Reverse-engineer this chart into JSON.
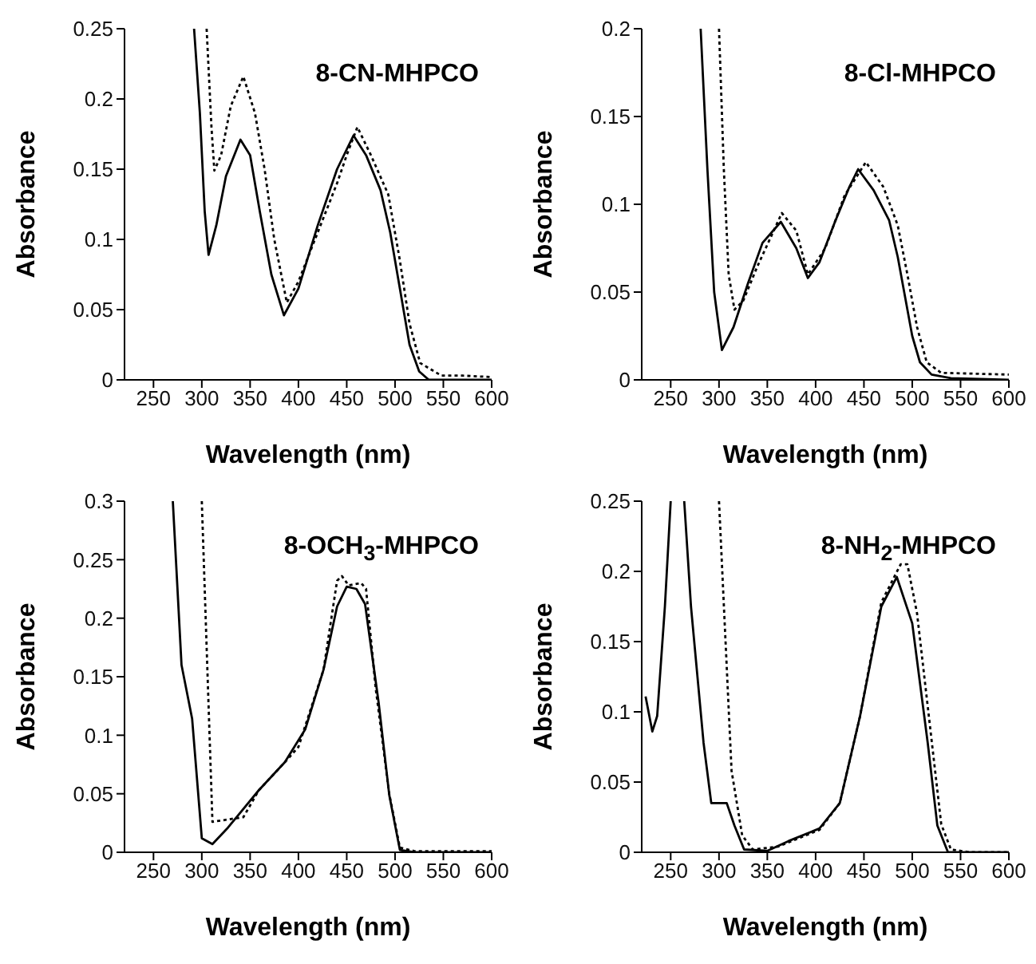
{
  "chart_data": [
    {
      "type": "line",
      "xlabel": "Wavelength (nm)",
      "ylabel": "Absorbance",
      "annotations": [
        "8-CN-MHPCO"
      ],
      "xlim": [
        220,
        600
      ],
      "xticks": [
        250,
        300,
        350,
        400,
        450,
        500,
        550,
        600
      ],
      "ylim": [
        0,
        0.25
      ],
      "yticks": [
        0,
        0.05,
        0.1,
        0.15,
        0.2,
        0.25
      ],
      "series": [
        {
          "color": "#000000",
          "line_style": "solid",
          "x": [
            292,
            298,
            303,
            307,
            315,
            325,
            340,
            350,
            360,
            372,
            385,
            400,
            420,
            440,
            457,
            470,
            485,
            495,
            505,
            515,
            525,
            535,
            600
          ],
          "values": [
            0.25,
            0.19,
            0.12,
            0.089,
            0.11,
            0.145,
            0.171,
            0.16,
            0.12,
            0.075,
            0.046,
            0.065,
            0.11,
            0.15,
            0.174,
            0.16,
            0.135,
            0.105,
            0.065,
            0.025,
            0.006,
            0,
            0
          ]
        },
        {
          "color": "#000000",
          "line_style": "dotted",
          "x": [
            305,
            310,
            313,
            320,
            330,
            343,
            355,
            365,
            375,
            388,
            400,
            420,
            440,
            450,
            461,
            475,
            493,
            505,
            515,
            526,
            548,
            570,
            600
          ],
          "values": [
            0.25,
            0.18,
            0.149,
            0.16,
            0.195,
            0.216,
            0.19,
            0.15,
            0.1,
            0.055,
            0.07,
            0.105,
            0.14,
            0.16,
            0.18,
            0.16,
            0.132,
            0.085,
            0.04,
            0.012,
            0.003,
            0.003,
            0.002
          ]
        }
      ]
    },
    {
      "type": "line",
      "xlabel": "Wavelength (nm)",
      "ylabel": "Absorbance",
      "annotations": [
        "8-Cl-MHPCO"
      ],
      "xlim": [
        220,
        600
      ],
      "xticks": [
        250,
        300,
        350,
        400,
        450,
        500,
        550,
        600
      ],
      "ylim": [
        0,
        0.2
      ],
      "yticks": [
        0,
        0.05,
        0.1,
        0.15,
        0.2
      ],
      "series": [
        {
          "color": "#000000",
          "line_style": "solid",
          "x": [
            281,
            288,
            295,
            303,
            315,
            330,
            345,
            364,
            380,
            392,
            404,
            420,
            435,
            444,
            460,
            476,
            485,
            492,
            500,
            508,
            520,
            540,
            600
          ],
          "values": [
            0.2,
            0.12,
            0.05,
            0.017,
            0.03,
            0.055,
            0.078,
            0.09,
            0.075,
            0.058,
            0.067,
            0.09,
            0.11,
            0.12,
            0.108,
            0.091,
            0.07,
            0.049,
            0.025,
            0.01,
            0.003,
            0.001,
            0
          ]
        },
        {
          "color": "#000000",
          "line_style": "dotted",
          "x": [
            300,
            305,
            310,
            316,
            325,
            340,
            365,
            380,
            392,
            410,
            430,
            452,
            470,
            485,
            495,
            505,
            515,
            530,
            600
          ],
          "values": [
            0.2,
            0.12,
            0.06,
            0.04,
            0.045,
            0.065,
            0.095,
            0.085,
            0.06,
            0.075,
            0.105,
            0.124,
            0.11,
            0.088,
            0.06,
            0.03,
            0.01,
            0.004,
            0.003
          ]
        }
      ]
    },
    {
      "type": "line",
      "xlabel": "Wavelength (nm)",
      "ylabel": "Absorbance",
      "annotations": [
        "8-OCH$_{3}$-MHPCO"
      ],
      "xlim": [
        220,
        600
      ],
      "xticks": [
        250,
        300,
        350,
        400,
        450,
        500,
        550,
        600
      ],
      "ylim": [
        0,
        0.3
      ],
      "yticks": [
        0,
        0.05,
        0.1,
        0.15,
        0.2,
        0.25,
        0.3
      ],
      "series": [
        {
          "color": "#000000",
          "line_style": "solid",
          "x": [
            270,
            279,
            290,
            300,
            311,
            327,
            359,
            386,
            407,
            426,
            440,
            450,
            460,
            469,
            483,
            494,
            505,
            520,
            600
          ],
          "values": [
            0.3,
            0.16,
            0.114,
            0.012,
            0.007,
            0.021,
            0.053,
            0.077,
            0.105,
            0.156,
            0.21,
            0.227,
            0.225,
            0.212,
            0.128,
            0.049,
            0.002,
            0,
            0
          ]
        },
        {
          "color": "#000000",
          "line_style": "dotted",
          "x": [
            300,
            311,
            343,
            359,
            386,
            400,
            426,
            440,
            445,
            452,
            465,
            470,
            480,
            494,
            505,
            520,
            600
          ],
          "values": [
            0.3,
            0.026,
            0.03,
            0.053,
            0.077,
            0.09,
            0.156,
            0.232,
            0.236,
            0.228,
            0.23,
            0.225,
            0.14,
            0.05,
            0.004,
            0.001,
            0.001
          ]
        }
      ]
    },
    {
      "type": "line",
      "xlabel": "Wavelength (nm)",
      "ylabel": "Absorbance",
      "annotations": [
        "8-NH$_{2}$-MHPCO"
      ],
      "xlim": [
        220,
        600
      ],
      "xticks": [
        250,
        300,
        350,
        400,
        450,
        500,
        550,
        600
      ],
      "ylim": [
        0,
        0.25
      ],
      "yticks": [
        0,
        0.05,
        0.1,
        0.15,
        0.2,
        0.25
      ],
      "series": [
        {
          "color": "#000000",
          "line_style": "solid",
          "x": [
            224,
            231,
            236,
            244,
            250,
            257,
            264,
            271,
            284,
            292,
            308,
            316,
            326,
            350,
            372,
            404,
            425,
            446,
            468,
            484,
            500,
            516,
            526,
            537,
            600
          ],
          "values": [
            0.111,
            0.086,
            0.097,
            0.175,
            0.25,
            null,
            0.25,
            0.175,
            0.078,
            0.035,
            0.035,
            0.019,
            0.002,
            0.001,
            0.008,
            0.017,
            0.035,
            0.097,
            0.175,
            0.196,
            0.163,
            0.078,
            0.019,
            0,
            0
          ]
        },
        {
          "color": "#000000",
          "line_style": "dotted",
          "x": [
            300,
            313,
            324,
            335,
            361,
            404,
            425,
            446,
            468,
            488,
            495,
            505,
            520,
            530,
            540,
            560,
            600
          ],
          "values": [
            0.25,
            0.058,
            0.012,
            0.002,
            0.004,
            0.016,
            0.035,
            0.097,
            0.178,
            0.205,
            0.205,
            0.17,
            0.08,
            0.02,
            0.002,
            0,
            0
          ]
        }
      ]
    }
  ]
}
